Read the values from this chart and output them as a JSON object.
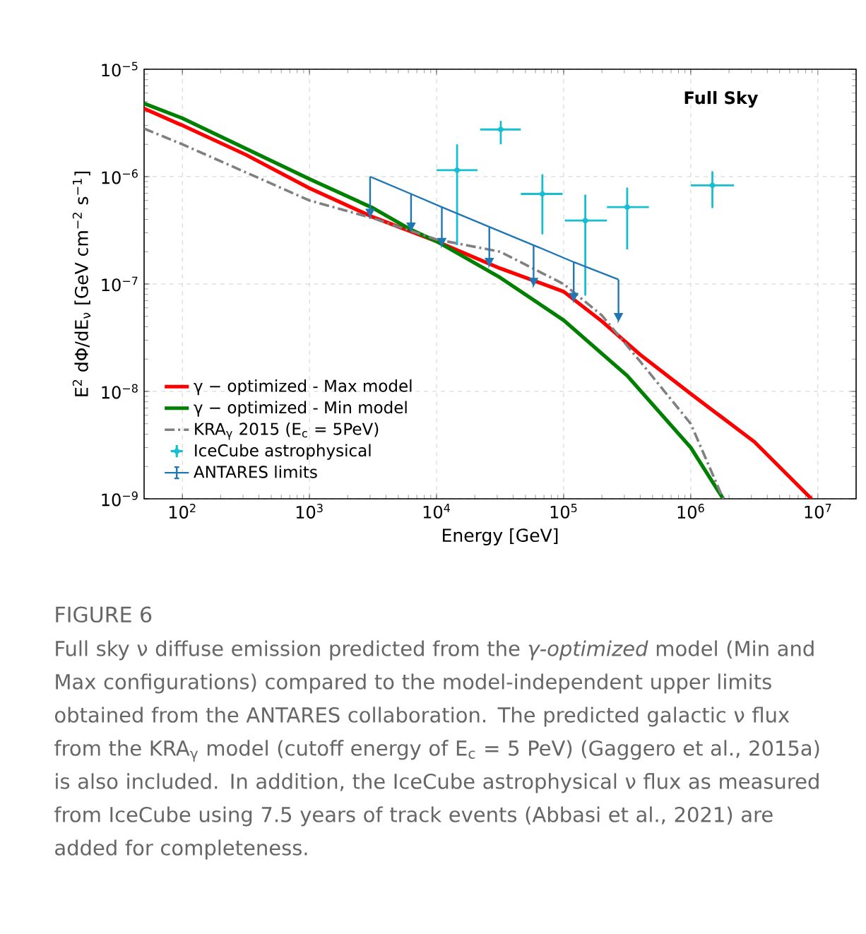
{
  "chart_data": {
    "type": "line",
    "xlabel": "Energy [GeV]",
    "ylabel": "E$^{2}$ dΦ/dE$_{ν}$ [GeV cm$^{−2}$ s$^{−1}$]",
    "log": "xy",
    "xlim": [
      50,
      20000000
    ],
    "ylim": [
      1e-09,
      1e-05
    ],
    "xticks": [
      {
        "value": 100,
        "label": "10$^{2}$"
      },
      {
        "value": 1000,
        "label": "10$^{3}$"
      },
      {
        "value": 10000,
        "label": "10$^{4}$"
      },
      {
        "value": 100000,
        "label": "10$^{5}$"
      },
      {
        "value": 1000000,
        "label": "10$^{6}$"
      },
      {
        "value": 10000000,
        "label": "10$^{7}$"
      }
    ],
    "yticks": [
      {
        "value": 1e-09,
        "label": "10$^{−9}$"
      },
      {
        "value": 1e-08,
        "label": "10$^{−8}$"
      },
      {
        "value": 1e-07,
        "label": "10$^{−7}$"
      },
      {
        "value": 1e-06,
        "label": "10$^{−6}$"
      },
      {
        "value": 1e-05,
        "label": "10$^{−5}$"
      }
    ],
    "grid": true,
    "legend": "bottom left",
    "series": [
      {
        "name": "γ − optimized - Max model",
        "color": "#ff0000",
        "x": [
          50,
          100,
          316,
          1000,
          3160,
          10000,
          31600,
          100000,
          200000,
          400000,
          1000000,
          3160000,
          8900000
        ],
        "values": [
          4.3e-06,
          3e-06,
          1.6e-06,
          7.8e-07,
          4.2e-07,
          2.5e-07,
          1.4e-07,
          8.5e-08,
          4.5e-08,
          2.2e-08,
          9.5e-09,
          3.4e-09,
          1e-09
        ]
      },
      {
        "name": "γ − optimized - Min model",
        "color": "#008000",
        "x": [
          50,
          100,
          1000,
          3160,
          6300,
          10000,
          31600,
          100000,
          316000,
          1000000,
          1800000
        ],
        "values": [
          4.8e-06,
          3.5e-06,
          9.5e-07,
          5.1e-07,
          3.2e-07,
          2.5e-07,
          1.15e-07,
          4.6e-08,
          1.4e-08,
          3e-09,
          1e-09
        ]
      },
      {
        "name": "KRA$_{γ}$ 2015 (E$_{c}$ = 5PeV)",
        "line_style": "dashdot",
        "color": "#808080",
        "x": [
          50,
          100,
          1000,
          3160,
          10000,
          31600,
          100000,
          200000,
          400000,
          1000000,
          1800000
        ],
        "values": [
          2.8e-06,
          2e-06,
          6e-07,
          4.1e-07,
          2.6e-07,
          2e-07,
          1e-07,
          5.1e-08,
          1.9e-08,
          5e-09,
          1e-09
        ]
      },
      {
        "name": "IceCube astrophysical",
        "type": "scatter",
        "marker": "circle",
        "color": "#17becf",
        "x": [
          14500,
          32000,
          68000,
          148000,
          316000,
          1480000
        ],
        "values": [
          1.15e-06,
          2.75e-06,
          6.9e-07,
          3.9e-07,
          5.2e-07,
          8.3e-07
        ],
        "xerrors": [
          [
            10000,
            21000
          ],
          [
            22000,
            46000
          ],
          [
            46000,
            98000
          ],
          [
            102000,
            219000
          ],
          [
            219000,
            468000
          ],
          [
            1000000,
            2190000
          ]
        ],
        "errors": [
          [
            2.3e-07,
            2e-06
          ],
          [
            2e-06,
            3.3e-06
          ],
          [
            2.9e-07,
            1.05e-06
          ],
          [
            7.8e-08,
            6.8e-07
          ],
          [
            2.1e-07,
            7.9e-07
          ],
          [
            5.1e-07,
            1.12e-06
          ]
        ]
      },
      {
        "name": "ANTARES limits",
        "color": "#1f77b4",
        "x": [
          3000,
          6300,
          11000,
          26000,
          58000,
          120000,
          270000
        ],
        "values": [
          1e-06,
          6.9e-07,
          5.2e-07,
          3.4e-07,
          2.3e-07,
          1.6e-07,
          1.1e-07
        ],
        "errors": [
          [
            4.3e-07,
            1e-06
          ],
          [
            3.2e-07,
            6.9e-07
          ],
          [
            2.3e-07,
            5.2e-07
          ],
          [
            1.5e-07,
            3.4e-07
          ],
          [
            9.8e-08,
            2.3e-07
          ],
          [
            7.1e-08,
            1.6e-07
          ],
          [
            4.6e-08,
            1.1e-07
          ]
        ]
      }
    ],
    "annotations": [
      "Full Sky",
      "FIGURE 6",
      "Full sky ν diffuse emission predicted from the *γ-optimized* model (Min and Max configurations) compared to the model-independent upper limits obtained from the ANTARES collaboration. The predicted galactic ν flux from the KRA$_{γ}$ model (cutoff energy of E$_{c}$ = 5 PeV) (Gaggero et al., 2015a) is also included. In addition, the IceCube astrophysical ν flux as measured from IceCube using 7.5 years of track events (Abbasi et al., 2021) are added for completeness."
    ]
  }
}
